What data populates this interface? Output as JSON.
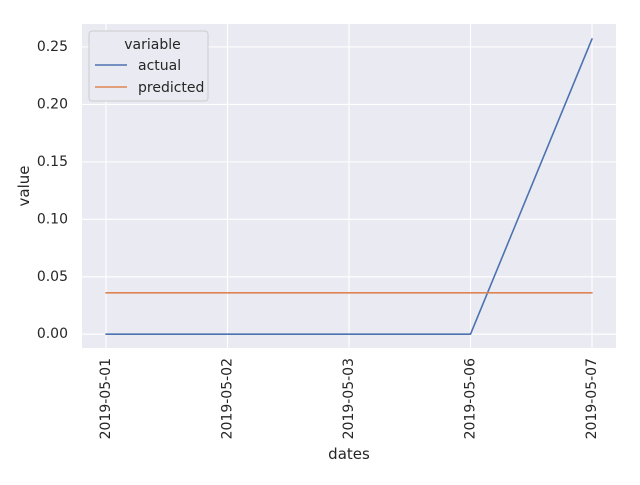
{
  "chart_data": {
    "type": "line",
    "title": "",
    "xlabel": "dates",
    "ylabel": "value",
    "x": [
      "2019-05-01",
      "2019-05-02",
      "2019-05-03",
      "2019-05-06",
      "2019-05-07"
    ],
    "series": [
      {
        "name": "actual",
        "color": "#4c72b0",
        "values": [
          0.0,
          0.0,
          0.0,
          0.0,
          0.257
        ]
      },
      {
        "name": "predicted",
        "color": "#dd8452",
        "values": [
          0.036,
          0.036,
          0.036,
          0.036,
          0.036
        ]
      }
    ],
    "ylim": [
      -0.012,
      0.27
    ],
    "yticks": [
      0.0,
      0.05,
      0.1,
      0.15,
      0.2,
      0.25
    ],
    "ytick_labels": [
      "0.00",
      "0.05",
      "0.10",
      "0.15",
      "0.20",
      "0.25"
    ],
    "legend": {
      "title": "variable",
      "placement": "top-left"
    },
    "grid": true,
    "style": {
      "background": "#eaeaf2",
      "grid_color": "#ffffff"
    }
  }
}
